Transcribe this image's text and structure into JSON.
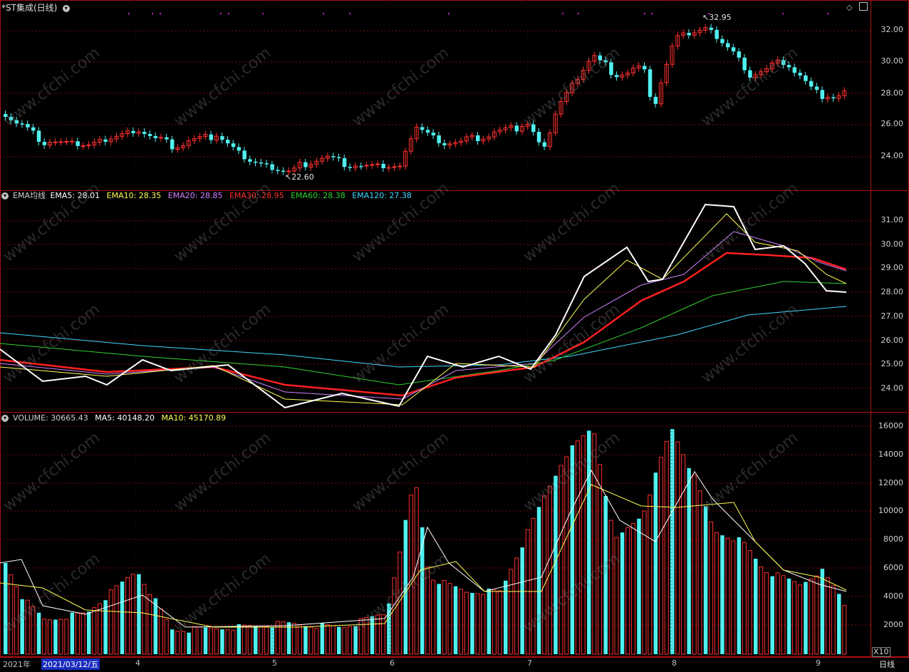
{
  "title": "*ST集成(日线)",
  "price_panel": {
    "high_label": "32.95",
    "low_label": "22.60",
    "y_ticks": [
      "32.00",
      "30.00",
      "28.00",
      "26.00",
      "24.00"
    ]
  },
  "ema_panel": {
    "name": "EMA均线",
    "items": [
      {
        "label": "EMA5: 28.01",
        "color": "#ffffff"
      },
      {
        "label": "EMA10: 28.35",
        "color": "#ffff55"
      },
      {
        "label": "EMA20: 28.85",
        "color": "#d080ff"
      },
      {
        "label": "EMA30: 28.95",
        "color": "#ff3030"
      },
      {
        "label": "EMA60: 28.38",
        "color": "#30d030"
      },
      {
        "label": "EMA120: 27.38",
        "color": "#40d8ff"
      }
    ],
    "y_ticks": [
      "31.00",
      "30.00",
      "29.00",
      "28.00",
      "27.00",
      "26.00",
      "25.00",
      "24.00"
    ]
  },
  "volume_panel": {
    "items": [
      {
        "label": "VOLUME: 30665.43",
        "color": "#d0d0d0"
      },
      {
        "label": "MA5: 40148.20",
        "color": "#ffffff"
      },
      {
        "label": "MA10: 45170.89",
        "color": "#ffff55"
      }
    ],
    "y_ticks": [
      "16000",
      "14000",
      "12000",
      "10000",
      "8000",
      "6000",
      "4000",
      "2000"
    ],
    "unit": "X10"
  },
  "dates": {
    "year": "2021年",
    "cursor": "2021/03/12/五",
    "months": [
      "4",
      "5",
      "6",
      "7",
      "8",
      "9"
    ]
  },
  "period_label": "日线",
  "watermark": "www.cfchi.com",
  "colors": {
    "up": "#ff3030",
    "down": "#50f0f0",
    "grid": "#b01010"
  }
}
